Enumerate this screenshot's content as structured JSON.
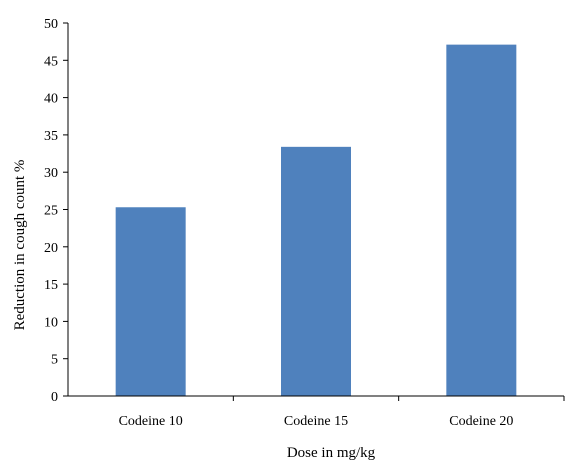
{
  "chart_data": {
    "type": "bar",
    "categories": [
      "Codeine 10",
      "Codeine 15",
      "Codeine 20"
    ],
    "values": [
      25.3,
      33.4,
      47.1
    ],
    "xlabel": "Dose in mg/kg",
    "ylabel": "Reduction in cough count %",
    "ylim": [
      0,
      50
    ],
    "yticks": [
      "0",
      "5",
      "10",
      "15",
      "20",
      "25",
      "30",
      "35",
      "40",
      "45",
      "50"
    ],
    "bar_color": "#4f81bd",
    "grid": false,
    "legend": "none"
  }
}
